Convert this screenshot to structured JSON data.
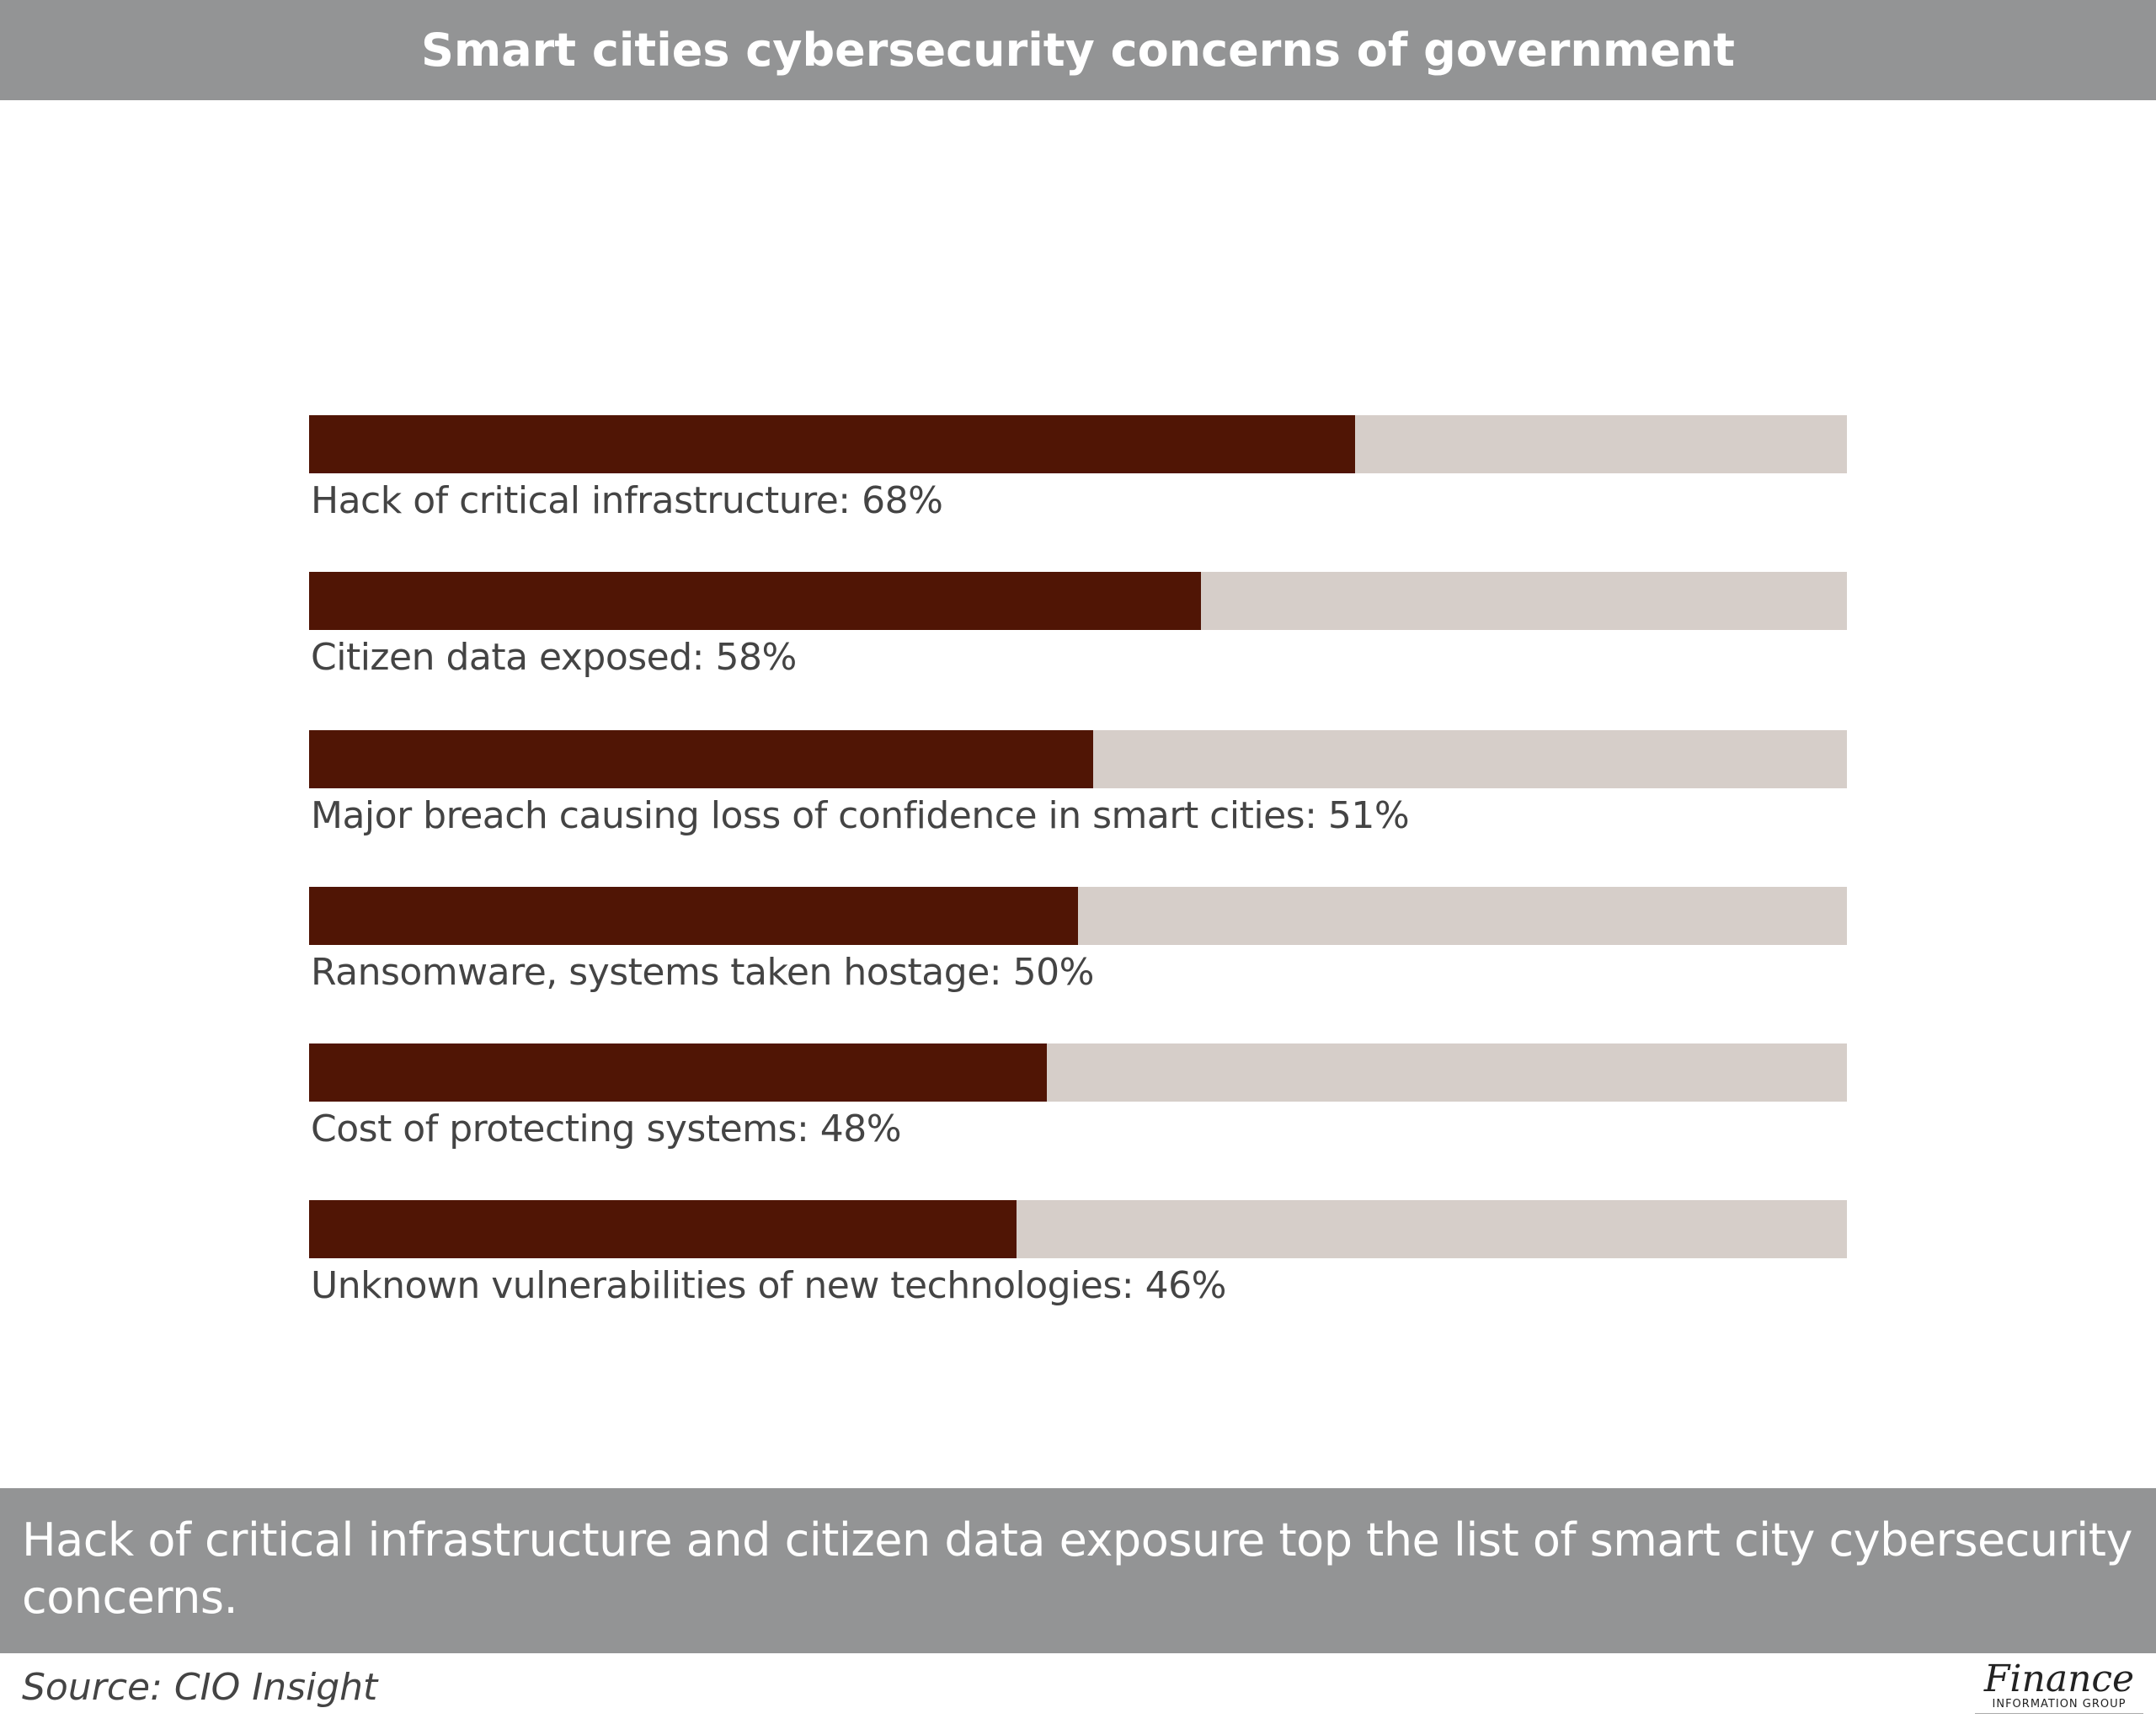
{
  "title": "Smart cities cybersecurity concerns of government",
  "chart_data": {
    "type": "bar",
    "orientation": "horizontal",
    "categories": [
      "Hack of critical infrastructure: 68%",
      "Citizen data exposed: 58%",
      "Major breach causing loss of confidence in smart cities: 51%",
      "Ransomware, systems taken hostage: 50%",
      "Cost of protecting systems: 48%",
      "Unknown vulnerabilities of new technologies: 46%"
    ],
    "values": [
      68,
      58,
      51,
      50,
      48,
      46
    ],
    "xlim": [
      0,
      100
    ],
    "grid": false,
    "colors": {
      "fill": "#501505",
      "track": "#d6cec9"
    }
  },
  "caption": "Hack of critical infrastructure and citizen data exposure top the list of smart city cybersecurity concerns.",
  "source": "Source: CIO Insight",
  "logo": {
    "main": "Finance",
    "sub": "INFORMATION GROUP"
  }
}
